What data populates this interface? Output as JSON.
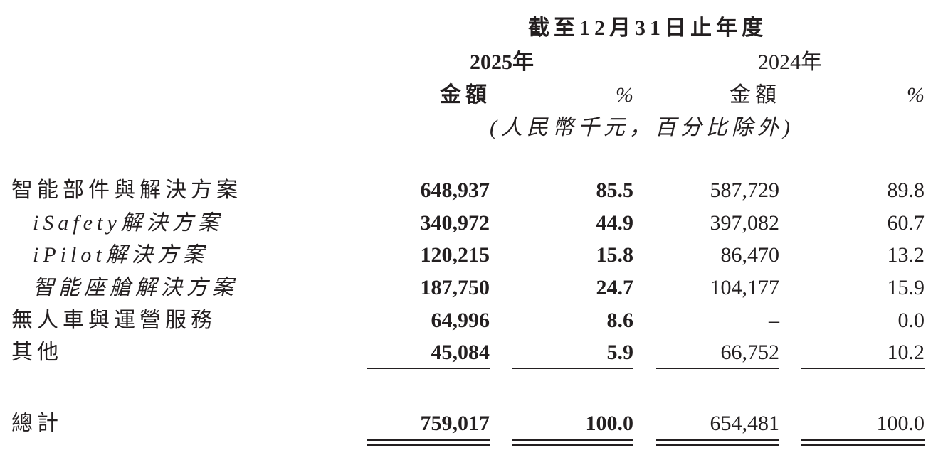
{
  "header": {
    "period": "截至12月31日止年度",
    "year_current": "2025年",
    "year_prior": "2024年",
    "amount_label": "金額",
    "percent_label": "%",
    "unit_note": "(人民幣千元，百分比除外)"
  },
  "rows": [
    {
      "label": "智能部件與解決方案",
      "indent": false,
      "italic": false,
      "amount_2025": "648,937",
      "pct_2025": "85.5",
      "amount_2024": "587,729",
      "pct_2024": "89.8"
    },
    {
      "label": "iSafety解決方案",
      "indent": true,
      "italic": true,
      "amount_2025": "340,972",
      "pct_2025": "44.9",
      "amount_2024": "397,082",
      "pct_2024": "60.7"
    },
    {
      "label": "iPilot解決方案",
      "indent": true,
      "italic": true,
      "amount_2025": "120,215",
      "pct_2025": "15.8",
      "amount_2024": "86,470",
      "pct_2024": "13.2"
    },
    {
      "label": "智能座艙解決方案",
      "indent": true,
      "italic": true,
      "amount_2025": "187,750",
      "pct_2025": "24.7",
      "amount_2024": "104,177",
      "pct_2024": "15.9"
    },
    {
      "label": "無人車與運營服務",
      "indent": false,
      "italic": false,
      "amount_2025": "64,996",
      "pct_2025": "8.6",
      "amount_2024": "–",
      "pct_2024": "0.0"
    },
    {
      "label": "其他",
      "indent": false,
      "italic": false,
      "amount_2025": "45,084",
      "pct_2025": "5.9",
      "amount_2024": "66,752",
      "pct_2024": "10.2"
    }
  ],
  "total": {
    "label": "總計",
    "amount_2025": "759,017",
    "pct_2025": "100.0",
    "amount_2024": "654,481",
    "pct_2024": "100.0"
  }
}
